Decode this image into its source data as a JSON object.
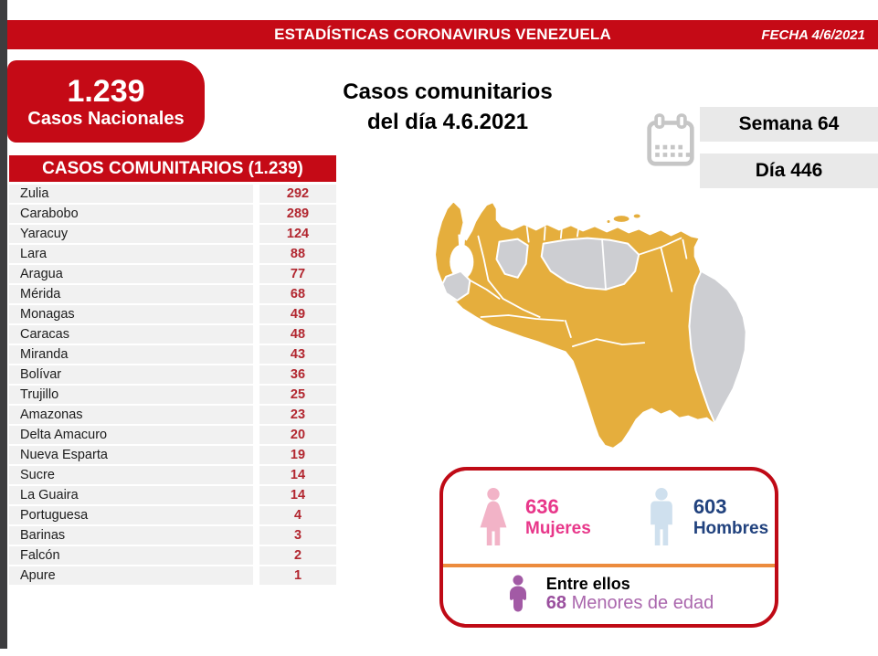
{
  "header": {
    "title": "ESTADÍSTICAS CORONAVIRUS VENEZUELA",
    "date_label": "FECHA 4/6/2021"
  },
  "national_badge": {
    "value": "1.239",
    "label": "Casos Nacionales"
  },
  "community_title": {
    "line1": "Casos comunitarios",
    "line2": "del día 4.6.2021"
  },
  "week_day": {
    "week": "Semana 64",
    "day": "Día 446"
  },
  "table": {
    "header": "CASOS COMUNITARIOS (1.239)",
    "rows": [
      {
        "state": "Zulia",
        "cases": "292"
      },
      {
        "state": "Carabobo",
        "cases": "289"
      },
      {
        "state": "Yaracuy",
        "cases": "124"
      },
      {
        "state": "Lara",
        "cases": "88"
      },
      {
        "state": "Aragua",
        "cases": "77"
      },
      {
        "state": "Mérida",
        "cases": "68"
      },
      {
        "state": "Monagas",
        "cases": "49"
      },
      {
        "state": "Caracas",
        "cases": "48"
      },
      {
        "state": "Miranda",
        "cases": "43"
      },
      {
        "state": "Bolívar",
        "cases": "36"
      },
      {
        "state": "Trujillo",
        "cases": "25"
      },
      {
        "state": "Amazonas",
        "cases": "23"
      },
      {
        "state": "Delta Amacuro",
        "cases": "20"
      },
      {
        "state": "Nueva Esparta",
        "cases": "19"
      },
      {
        "state": "Sucre",
        "cases": "14"
      },
      {
        "state": "La Guaira",
        "cases": "14"
      },
      {
        "state": "Portuguesa",
        "cases": "4"
      },
      {
        "state": "Barinas",
        "cases": "3"
      },
      {
        "state": "Falcón",
        "cases": "2"
      },
      {
        "state": "Apure",
        "cases": "1"
      }
    ]
  },
  "gender_card": {
    "women_value": "636",
    "women_label": "Mujeres",
    "men_value": "603",
    "men_label": "Hombres",
    "minors_intro": "Entre ellos",
    "minors_value": "68",
    "minors_label": "Menores de edad"
  },
  "map": {
    "name": "venezuela-states-choropleth",
    "with_cases_color": "#e5ae3d",
    "without_cases_color": "#cdced2",
    "border_color": "#ffffff"
  },
  "colors": {
    "accent_red": "#c50a16",
    "value_red": "#b2262f",
    "pink": "#e8378a",
    "navy": "#21427e",
    "purple": "#aa67ad",
    "divider_orange": "#ec8b3d"
  },
  "chart_data": {
    "type": "table",
    "title": "CASOS COMUNITARIOS (1.239)",
    "categories": [
      "Zulia",
      "Carabobo",
      "Yaracuy",
      "Lara",
      "Aragua",
      "Mérida",
      "Monagas",
      "Caracas",
      "Miranda",
      "Bolívar",
      "Trujillo",
      "Amazonas",
      "Delta Amacuro",
      "Nueva Esparta",
      "Sucre",
      "La Guaira",
      "Portuguesa",
      "Barinas",
      "Falcón",
      "Apure"
    ],
    "values": [
      292,
      289,
      124,
      88,
      77,
      68,
      49,
      48,
      43,
      36,
      25,
      23,
      20,
      19,
      14,
      14,
      4,
      3,
      2,
      1
    ],
    "total_national_cases": 1239,
    "date": "4.6.2021",
    "week": 64,
    "day": 446,
    "women": 636,
    "men": 603,
    "minors": 68
  }
}
